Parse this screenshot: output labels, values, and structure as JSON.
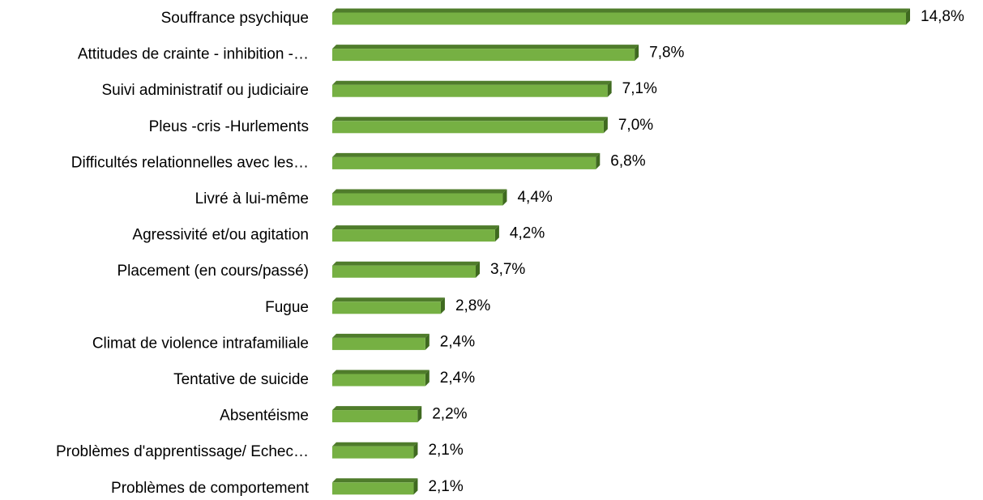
{
  "chart_data": {
    "type": "bar",
    "orientation": "horizontal",
    "categories": [
      "Souffrance psychique",
      "Attitudes de crainte - inhibition -…",
      "Suivi administratif ou judiciaire",
      "Pleus -cris -Hurlements",
      "Difficultés relationnelles avec les…",
      "Livré à lui-même",
      "Agressivité et/ou agitation",
      "Placement (en cours/passé)",
      "Fugue",
      "Climat de violence intrafamiliale",
      "Tentative de suicide",
      "Absentéisme",
      "Problèmes d'apprentissage/ Echec…",
      "Problèmes de comportement"
    ],
    "values": [
      14.8,
      7.8,
      7.1,
      7.0,
      6.8,
      4.4,
      4.2,
      3.7,
      2.8,
      2.4,
      2.4,
      2.2,
      2.1,
      2.1
    ],
    "value_labels": [
      "14,8%",
      "7,8%",
      "7,1%",
      "7,0%",
      "6,8%",
      "4,4%",
      "4,2%",
      "3,7%",
      "2,8%",
      "2,4%",
      "2,4%",
      "2,2%",
      "2,1%",
      "2,1%"
    ],
    "color": "#76b043"
  }
}
